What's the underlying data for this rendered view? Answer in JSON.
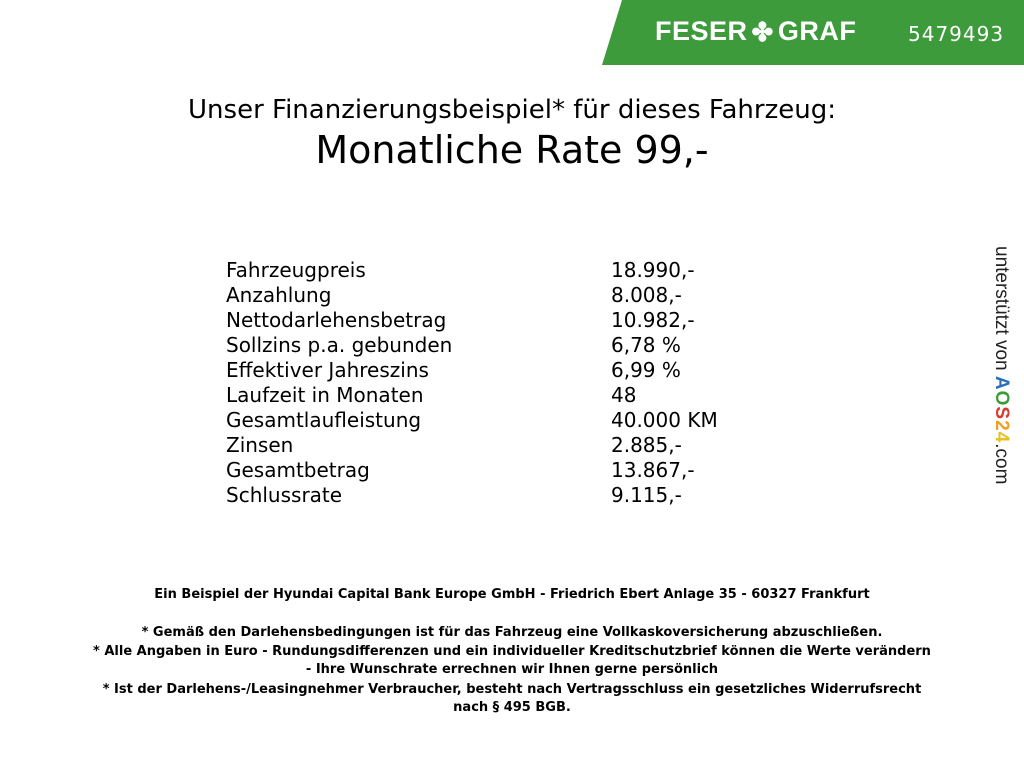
{
  "header": {
    "brand": "FESER ✤ GRAF",
    "brand_left": "FESER",
    "brand_right": "GRAF",
    "code": "5479493",
    "accent": "#3d9b3b"
  },
  "title": {
    "line1": "Unser Finanzierungsbeispiel* für dieses Fahrzeug:",
    "line2": "Monatliche Rate 99,-"
  },
  "rows": [
    {
      "label": "Fahrzeugpreis",
      "value": "18.990,-"
    },
    {
      "label": "Anzahlung",
      "value": "8.008,-"
    },
    {
      "label": "Nettodarlehensbetrag",
      "value": "10.982,-"
    },
    {
      "label": "Sollzins p.a. gebunden",
      "value": "6,78 %"
    },
    {
      "label": "Effektiver Jahreszins",
      "value": "6,99 %"
    },
    {
      "label": "Laufzeit in Monaten",
      "value": "48"
    },
    {
      "label": "Gesamtlaufleistung",
      "value": "40.000 KM"
    },
    {
      "label": "Zinsen",
      "value": "2.885,-"
    },
    {
      "label": "Gesamtbetrag",
      "value": "13.867,-"
    },
    {
      "label": "Schlussrate",
      "value": "9.115,-"
    }
  ],
  "footer": {
    "bank": "Ein Beispiel der Hyundai Capital Bank Europe GmbH - Friedrich Ebert Anlage 35 - 60327 Frankfurt",
    "note1": "* Gemäß den Darlehensbedingungen ist für das Fahrzeug eine Vollkaskoversicherung abzuschließen.",
    "note2a": "* Alle Angaben in Euro - Rundungsdifferenzen und ein individueller Kreditschutzbrief können die Werte verändern",
    "note2b": "- Ihre Wunschrate errechnen wir Ihnen gerne persönlich",
    "note3a": "* Ist der Darlehens-/Leasingnehmer Verbraucher, besteht nach Vertragsschluss ein gesetzliches Widerrufsrecht",
    "note3b": "nach § 495 BGB."
  },
  "side": {
    "prefix": "unterstützt von",
    "brand": "AOS24",
    "suffix": ".com",
    "letters": [
      "A",
      "O",
      "S",
      "2",
      "4"
    ],
    "colors": [
      "#2c6fb6",
      "#3d9b3b",
      "#d93a2b",
      "#f0a020",
      "#e8c020"
    ]
  }
}
